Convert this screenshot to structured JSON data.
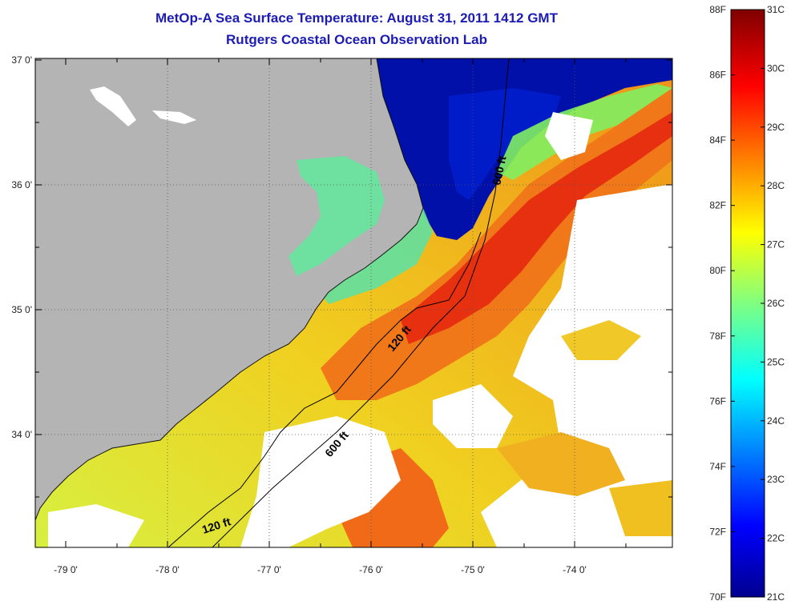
{
  "title": {
    "line1": "MetOp-A Sea Surface Temperature:  August 31, 2011 1412 GMT",
    "line2": "Rutgers Coastal Ocean Observation Lab"
  },
  "map": {
    "lat_ticks": [
      "37 0'",
      "36 0'",
      "35 0'",
      "34 0'"
    ],
    "lon_ticks": [
      "-79 0'",
      "-78 0'",
      "-77 0'",
      "-76 0'",
      "-75 0'",
      "-74 0'"
    ],
    "contours": {
      "c600_north": "600 ft",
      "c120_mid": "120 ft",
      "c600_south": "600 ft",
      "c120_south": "120 ft"
    },
    "colors": {
      "land": "#b4b4b4",
      "cloud": "#ffffff",
      "cold_water": "#000a9e",
      "gulf_stream": "#e0280a"
    }
  },
  "colorbar": {
    "fahrenheit": [
      "88F",
      "86F",
      "84F",
      "82F",
      "80F",
      "78F",
      "76F",
      "74F",
      "72F",
      "70F"
    ],
    "celsius": [
      "31C",
      "30C",
      "29C",
      "28C",
      "27C",
      "26C",
      "25C",
      "24C",
      "23C",
      "22C",
      "21C"
    ]
  }
}
